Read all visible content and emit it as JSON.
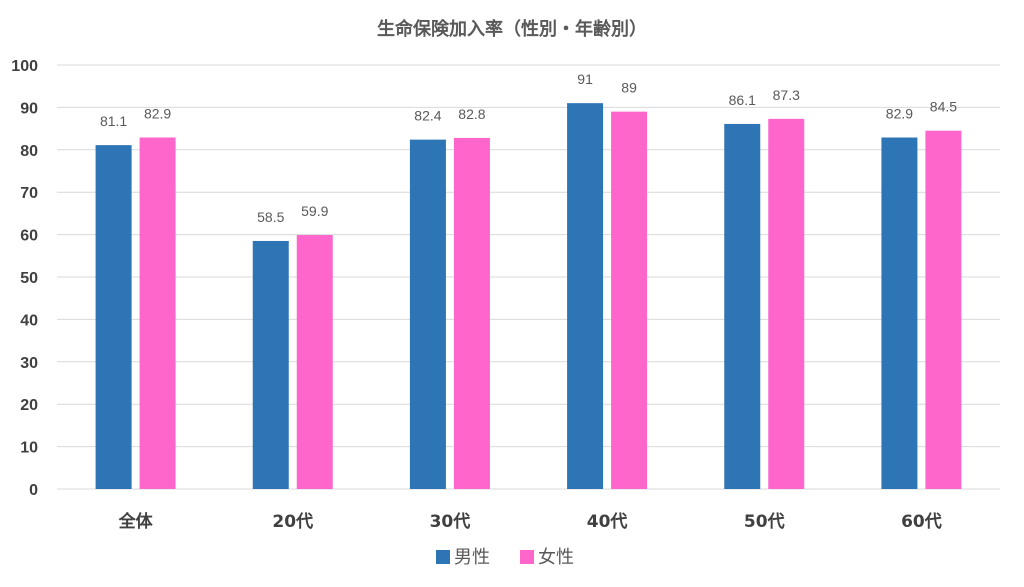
{
  "chart_data": {
    "type": "bar",
    "title": "生命保険加入率（性別・年齢別）",
    "categories": [
      "全体",
      "20代",
      "30代",
      "40代",
      "50代",
      "60代"
    ],
    "series": [
      {
        "name": "男性",
        "color": "#2e75b6",
        "values": [
          81.1,
          58.5,
          82.4,
          91,
          86.1,
          82.9
        ]
      },
      {
        "name": "女性",
        "color": "#ff66cc",
        "values": [
          82.9,
          59.9,
          82.8,
          89,
          87.3,
          84.5
        ]
      }
    ],
    "ylim": [
      0,
      100
    ],
    "yticks": [
      0,
      10,
      20,
      30,
      40,
      50,
      60,
      70,
      80,
      90,
      100
    ],
    "grid": true,
    "legend_position": "bottom",
    "data_labels": true
  }
}
